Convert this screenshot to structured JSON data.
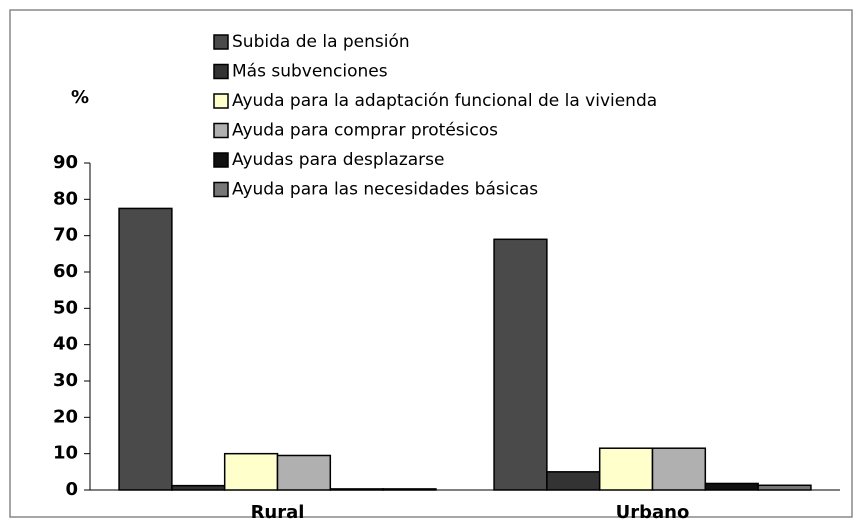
{
  "chart_data": {
    "type": "bar",
    "ylabel": "%",
    "categories": [
      "Rural",
      "Urbano"
    ],
    "series": [
      {
        "name": "Subida de la pensión",
        "color": "#4a4a4a",
        "values": [
          77.5,
          69
        ]
      },
      {
        "name": "Más subvenciones",
        "color": "#333333",
        "values": [
          1.2,
          5
        ]
      },
      {
        "name": "Ayuda para la adaptación funcional de la vivienda",
        "color": "#ffffcc",
        "values": [
          10,
          11.5
        ]
      },
      {
        "name": "Ayuda para comprar protésicos",
        "color": "#b0b0b0",
        "values": [
          9.5,
          11.5
        ]
      },
      {
        "name": "Ayudas para desplazarse",
        "color": "#111111",
        "values": [
          0.3,
          1.8
        ]
      },
      {
        "name": "Ayuda para las necesidades básicas",
        "color": "#777777",
        "values": [
          0.3,
          1.3
        ]
      }
    ],
    "ylim": [
      0,
      90
    ],
    "yticks": [
      0,
      10,
      20,
      30,
      40,
      50,
      60,
      70,
      80,
      90
    ],
    "grid": false
  }
}
